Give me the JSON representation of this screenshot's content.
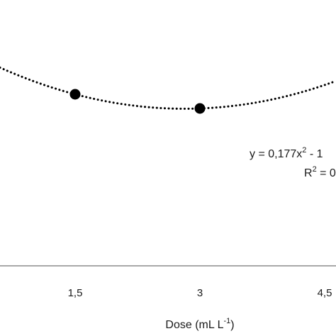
{
  "chart_data": {
    "type": "scatter",
    "x_tick_labels": [
      "1,5",
      "3",
      "4,5"
    ],
    "x_ticks": [
      1.5,
      3,
      4.5
    ],
    "xlabel": {
      "text": "Dose (mL L",
      "superscript": "-1",
      "suffix": ")"
    },
    "series": [
      {
        "x": [
          1.5,
          3
        ],
        "y": [
          2.9,
          2.6
        ]
      }
    ],
    "trendline": {
      "style": "dotted",
      "coefficients": {
        "a": 0.177
      },
      "equation": {
        "prefix": "y = 0,177x",
        "exponent": "2",
        "rest": " - 1"
      },
      "r_squared": {
        "prefix": "R",
        "exponent": "2",
        "rest": " = 0"
      }
    },
    "colors": {
      "points": "#000000",
      "trendline": "#000000",
      "axis": "#8c8c8c",
      "text": "#1a1a1a"
    }
  }
}
